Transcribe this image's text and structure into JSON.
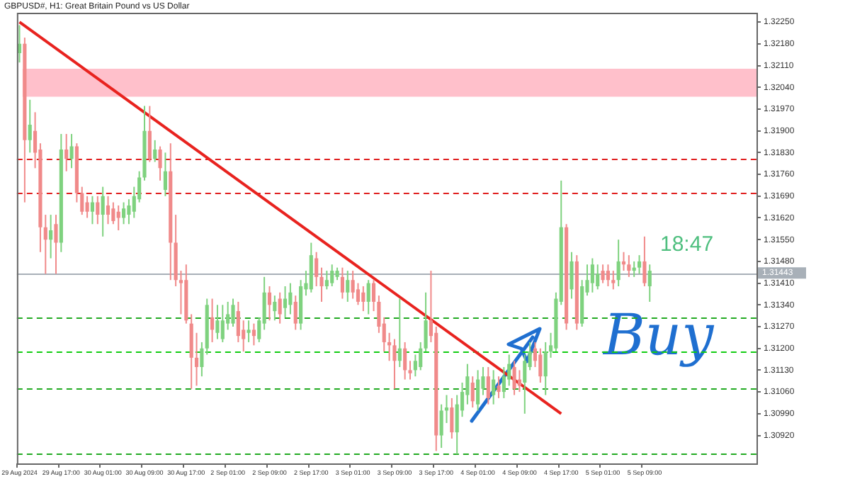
{
  "chart_data": {
    "type": "candlestick",
    "title": "GBPUSD#, H1: Great Britain Pound vs US Dollar",
    "categories": [
      "29 Aug 2024",
      null,
      null,
      null,
      null,
      null,
      null,
      null,
      "29 Aug 17:00",
      null,
      null,
      null,
      null,
      null,
      null,
      null,
      "30 Aug 01:00",
      null,
      null,
      null,
      null,
      null,
      null,
      null,
      "30 Aug 09:00",
      null,
      null,
      null,
      null,
      null,
      null,
      null,
      "30 Aug 17:00",
      null,
      null,
      null,
      null,
      null,
      null,
      null,
      "2 Sep 01:00",
      null,
      null,
      null,
      null,
      null,
      null,
      null,
      "2 Sep 09:00",
      null,
      null,
      null,
      null,
      null,
      null,
      null,
      "2 Sep 17:00",
      null,
      null,
      null,
      null,
      null,
      null,
      null,
      "3 Sep 01:00",
      null,
      null,
      null,
      null,
      null,
      null,
      null,
      "3 Sep 09:00",
      null,
      null,
      null,
      null,
      null,
      null,
      null,
      "3 Sep 17:00",
      null,
      null,
      null,
      null,
      null,
      null,
      null,
      "4 Sep 01:00",
      null,
      null,
      null,
      null,
      null,
      null,
      null,
      "4 Sep 09:00",
      null,
      null,
      null,
      null,
      null,
      null,
      null,
      "4 Sep 17:00",
      null,
      null,
      null,
      null,
      null,
      null,
      null,
      "5 Sep 01:00",
      null,
      null,
      null,
      null,
      null,
      null,
      null,
      "5 Sep 09:00",
      null,
      null,
      null,
      null,
      null,
      null,
      null,
      null,
      null,
      null,
      null,
      null,
      null,
      null,
      null,
      null,
      null,
      null,
      null,
      null,
      null
    ],
    "series": [
      {
        "ohlc": [
          [
            1.3215,
            1.3224,
            1.3212,
            1.3218
          ],
          [
            1.3218,
            1.322,
            1.3167,
            1.3187
          ],
          [
            1.3187,
            1.32,
            1.3183,
            1.3192
          ],
          [
            1.319,
            1.3196,
            1.3178,
            1.3183
          ],
          [
            1.3184,
            1.3186,
            1.3151,
            1.3159
          ],
          [
            1.3159,
            1.3163,
            1.3144,
            1.3155
          ],
          [
            1.3155,
            1.3163,
            1.3149,
            1.3158
          ],
          [
            1.316,
            1.3163,
            1.3144,
            1.3154
          ],
          [
            1.3154,
            1.3189,
            1.3151,
            1.3184
          ],
          [
            1.3184,
            1.3189,
            1.3177,
            1.3181
          ],
          [
            1.3181,
            1.3189,
            1.3178,
            1.3185
          ],
          [
            1.3185,
            1.3186,
            1.3167,
            1.317
          ],
          [
            1.317,
            1.3172,
            1.3163,
            1.3164
          ],
          [
            1.3167,
            1.3169,
            1.3162,
            1.3164
          ],
          [
            1.3164,
            1.3169,
            1.316,
            1.3167
          ],
          [
            1.3167,
            1.3169,
            1.316,
            1.3163
          ],
          [
            1.3163,
            1.3172,
            1.3156,
            1.3169
          ],
          [
            1.3166,
            1.3169,
            1.316,
            1.3163
          ],
          [
            1.3165,
            1.3167,
            1.316,
            1.3161
          ],
          [
            1.3164,
            1.3166,
            1.3158,
            1.3162
          ],
          [
            1.3162,
            1.3167,
            1.316,
            1.3165
          ],
          [
            1.3163,
            1.3168,
            1.316,
            1.3166
          ],
          [
            1.3164,
            1.3172,
            1.3162,
            1.3169
          ],
          [
            1.3168,
            1.3177,
            1.3167,
            1.3175
          ],
          [
            1.3175,
            1.3198,
            1.3174,
            1.319
          ],
          [
            1.319,
            1.3198,
            1.318,
            1.3181
          ],
          [
            1.3181,
            1.3187,
            1.318,
            1.3184
          ],
          [
            1.3184,
            1.3185,
            1.3174,
            1.3178
          ],
          [
            1.3171,
            1.3183,
            1.3169,
            1.3177
          ],
          [
            1.3177,
            1.3186,
            1.3142,
            1.3154
          ],
          [
            1.3154,
            1.3163,
            1.314,
            1.3142
          ],
          [
            1.3142,
            1.3145,
            1.3131,
            1.3141
          ],
          [
            1.3142,
            1.3147,
            1.3128,
            1.3129
          ],
          [
            1.3128,
            1.3131,
            1.3107,
            1.3117
          ],
          [
            1.3117,
            1.3125,
            1.3108,
            1.3114
          ],
          [
            1.3114,
            1.3122,
            1.3111,
            1.312
          ],
          [
            1.312,
            1.3136,
            1.3118,
            1.3134
          ],
          [
            1.313,
            1.3136,
            1.3122,
            1.3126
          ],
          [
            1.3125,
            1.3134,
            1.3123,
            1.3129
          ],
          [
            1.3123,
            1.3134,
            1.3122,
            1.3129
          ],
          [
            1.3128,
            1.3135,
            1.3126,
            1.3131
          ],
          [
            1.3128,
            1.3136,
            1.3127,
            1.3134
          ],
          [
            1.3132,
            1.3135,
            1.3122,
            1.3124
          ],
          [
            1.3126,
            1.3129,
            1.3119,
            1.3123
          ],
          [
            1.3125,
            1.3129,
            1.3122,
            1.3126
          ],
          [
            1.3126,
            1.3128,
            1.3121,
            1.3124
          ],
          [
            1.3123,
            1.313,
            1.3122,
            1.3129
          ],
          [
            1.3128,
            1.3143,
            1.3126,
            1.3138
          ],
          [
            1.3138,
            1.314,
            1.3129,
            1.3134
          ],
          [
            1.3132,
            1.3137,
            1.3129,
            1.3135
          ],
          [
            1.3136,
            1.3138,
            1.3128,
            1.3131
          ],
          [
            1.3133,
            1.314,
            1.313,
            1.3136
          ],
          [
            1.3134,
            1.3141,
            1.3131,
            1.3138
          ],
          [
            1.3135,
            1.3137,
            1.3126,
            1.3128
          ],
          [
            1.3128,
            1.3142,
            1.3126,
            1.314
          ],
          [
            1.3139,
            1.3145,
            1.3137,
            1.3141
          ],
          [
            1.3139,
            1.3154,
            1.3138,
            1.315
          ],
          [
            1.3149,
            1.3151,
            1.314,
            1.3143
          ],
          [
            1.3143,
            1.3146,
            1.3135,
            1.314
          ],
          [
            1.314,
            1.3145,
            1.3139,
            1.3142
          ],
          [
            1.3141,
            1.3147,
            1.314,
            1.3145
          ],
          [
            1.3143,
            1.3146,
            1.3142,
            1.3145
          ],
          [
            1.3143,
            1.3146,
            1.3136,
            1.3138
          ],
          [
            1.3138,
            1.3145,
            1.3135,
            1.3142
          ],
          [
            1.3142,
            1.3145,
            1.3136,
            1.3138
          ],
          [
            1.3139,
            1.3141,
            1.3134,
            1.3135
          ],
          [
            1.3138,
            1.314,
            1.3132,
            1.3135
          ],
          [
            1.3135,
            1.3142,
            1.3131,
            1.3141
          ],
          [
            1.3141,
            1.3142,
            1.3132,
            1.3135
          ],
          [
            1.3135,
            1.3137,
            1.3125,
            1.3127
          ],
          [
            1.3128,
            1.313,
            1.3119,
            1.3122
          ],
          [
            1.3122,
            1.3125,
            1.3116,
            1.3121
          ],
          [
            1.3121,
            1.3123,
            1.3107,
            1.3116
          ],
          [
            1.3116,
            1.3136,
            1.3114,
            1.312
          ],
          [
            1.312,
            1.3122,
            1.311,
            1.3113
          ],
          [
            1.3113,
            1.3116,
            1.311,
            1.3112
          ],
          [
            1.3113,
            1.3118,
            1.3111,
            1.3116
          ],
          [
            1.3114,
            1.3122,
            1.3113,
            1.312
          ],
          [
            1.312,
            1.3138,
            1.3119,
            1.3129
          ],
          [
            1.3129,
            1.3145,
            1.3122,
            1.3124
          ],
          [
            1.3125,
            1.3127,
            1.3087,
            1.3092
          ],
          [
            1.3092,
            1.3102,
            1.3088,
            1.31
          ],
          [
            1.31,
            1.3105,
            1.3096,
            1.3101
          ],
          [
            1.3101,
            1.3104,
            1.3091,
            1.3093
          ],
          [
            1.3093,
            1.3105,
            1.3086,
            1.3102
          ],
          [
            1.31,
            1.3109,
            1.3098,
            1.3106
          ],
          [
            1.3105,
            1.3115,
            1.3102,
            1.3111
          ],
          [
            1.3109,
            1.3111,
            1.3101,
            1.3103
          ],
          [
            1.3102,
            1.3113,
            1.31,
            1.311
          ],
          [
            1.3107,
            1.3114,
            1.3105,
            1.3111
          ],
          [
            1.3111,
            1.3114,
            1.3102,
            1.3104
          ],
          [
            1.3105,
            1.3113,
            1.3102,
            1.311
          ],
          [
            1.3108,
            1.3111,
            1.3104,
            1.3106
          ],
          [
            1.3106,
            1.3114,
            1.3104,
            1.3111
          ],
          [
            1.311,
            1.3118,
            1.3108,
            1.3115
          ],
          [
            1.3114,
            1.3116,
            1.3105,
            1.3107
          ],
          [
            1.311,
            1.3113,
            1.3106,
            1.3108
          ],
          [
            1.3109,
            1.3118,
            1.3099,
            1.3116
          ],
          [
            1.3114,
            1.3122,
            1.3113,
            1.3119
          ],
          [
            1.312,
            1.3122,
            1.3114,
            1.3116
          ],
          [
            1.3118,
            1.312,
            1.3109,
            1.3111
          ],
          [
            1.3111,
            1.3122,
            1.3105,
            1.3119
          ],
          [
            1.3119,
            1.3125,
            1.3117,
            1.3121
          ],
          [
            1.312,
            1.3138,
            1.3119,
            1.3136
          ],
          [
            1.3135,
            1.3174,
            1.3134,
            1.3159
          ],
          [
            1.3159,
            1.316,
            1.3126,
            1.3128
          ],
          [
            1.3139,
            1.3151,
            1.3136,
            1.3148
          ],
          [
            1.3148,
            1.315,
            1.3126,
            1.3128
          ],
          [
            1.3128,
            1.3142,
            1.3127,
            1.314
          ],
          [
            1.3138,
            1.3147,
            1.3137,
            1.3142
          ],
          [
            1.3141,
            1.3149,
            1.3138,
            1.3147
          ],
          [
            1.314,
            1.3147,
            1.3139,
            1.3144
          ],
          [
            1.3145,
            1.3147,
            1.3141,
            1.3142
          ],
          [
            1.3145,
            1.3147,
            1.314,
            1.3142
          ],
          [
            1.3142,
            1.3145,
            1.3139,
            1.3141
          ],
          [
            1.3142,
            1.3155,
            1.314,
            1.3148
          ],
          [
            1.3148,
            1.3151,
            1.3145,
            1.3147
          ],
          [
            1.3147,
            1.315,
            1.3143,
            1.3145
          ],
          [
            1.3145,
            1.3148,
            1.3143,
            1.3146
          ],
          [
            1.3146,
            1.315,
            1.3144,
            1.3148
          ],
          [
            1.3148,
            1.3156,
            1.314,
            1.3141
          ],
          [
            1.314,
            1.3147,
            1.3135,
            1.3145
          ],
          null,
          null,
          null,
          null,
          null,
          null,
          null,
          null,
          null,
          null,
          null,
          null,
          null,
          null,
          null,
          null,
          null,
          null,
          null,
          null
        ],
        "colors": [
          "#7fd27f",
          "#f08a8a",
          "#7fd27f",
          "#f08a8a",
          "#f08a8a",
          "#f08a8a",
          "#7fd27f",
          "#f08a8a",
          "#7fd27f",
          "#f08a8a",
          "#7fd27f",
          "#f08a8a",
          "#f08a8a",
          "#f08a8a",
          "#7fd27f",
          "#f08a8a",
          "#7fd27f",
          "#f08a8a",
          "#f08a8a",
          "#f08a8a",
          "#7fd27f",
          "#7fd27f",
          "#7fd27f",
          "#7fd27f",
          "#7fd27f",
          "#f08a8a",
          "#7fd27f",
          "#f08a8a",
          "#7fd27f",
          "#f08a8a",
          "#f08a8a",
          "#f08a8a",
          "#f08a8a",
          "#f08a8a",
          "#f08a8a",
          "#7fd27f",
          "#7fd27f",
          "#f08a8a",
          "#7fd27f",
          "#7fd27f",
          "#7fd27f",
          "#7fd27f",
          "#f08a8a",
          "#f08a8a",
          "#7fd27f",
          "#f08a8a",
          "#7fd27f",
          "#7fd27f",
          "#f08a8a",
          "#7fd27f",
          "#f08a8a",
          "#7fd27f",
          "#7fd27f",
          "#f08a8a",
          "#7fd27f",
          "#7fd27f",
          "#7fd27f",
          "#f08a8a",
          "#f08a8a",
          "#7fd27f",
          "#7fd27f",
          "#7fd27f",
          "#f08a8a",
          "#7fd27f",
          "#f08a8a",
          "#f08a8a",
          "#f08a8a",
          "#7fd27f",
          "#f08a8a",
          "#f08a8a",
          "#f08a8a",
          "#f08a8a",
          "#f08a8a",
          "#7fd27f",
          "#f08a8a",
          "#f08a8a",
          "#7fd27f",
          "#7fd27f",
          "#7fd27f",
          "#f08a8a",
          "#f08a8a",
          "#7fd27f",
          "#7fd27f",
          "#f08a8a",
          "#7fd27f",
          "#7fd27f",
          "#7fd27f",
          "#f08a8a",
          "#7fd27f",
          "#7fd27f",
          "#f08a8a",
          "#7fd27f",
          "#f08a8a",
          "#7fd27f",
          "#7fd27f",
          "#f08a8a",
          "#f08a8a",
          "#7fd27f",
          "#7fd27f",
          "#f08a8a",
          "#f08a8a",
          "#7fd27f",
          "#7fd27f",
          "#7fd27f",
          "#7fd27f",
          "#f08a8a",
          "#7fd27f",
          "#f08a8a",
          "#7fd27f",
          "#7fd27f",
          "#7fd27f",
          "#7fd27f",
          "#f08a8a",
          "#f08a8a",
          "#f08a8a",
          "#7fd27f",
          "#f08a8a",
          "#f08a8a",
          "#7fd27f",
          "#7fd27f",
          "#f08a8a",
          "#7fd27f",
          null,
          null,
          null,
          null,
          null,
          null,
          null,
          null,
          null,
          null,
          null,
          null,
          null,
          null,
          null,
          null,
          null,
          null,
          null,
          null
        ]
      },
      {
        "type": "line",
        "x": [
          "29 Aug 2024",
          "4 Sep 17:00"
        ],
        "values": [
          1.3225,
          1.3099
        ],
        "color": "#e8231f"
      }
    ],
    "ylim": [
      1.3083,
      1.3228
    ],
    "yticks": [
      {
        "value": 1.3092,
        "label": "1.30920"
      },
      {
        "value": 1.3099,
        "label": "1.30990"
      },
      {
        "value": 1.3106,
        "label": "1.31060"
      },
      {
        "value": 1.3113,
        "label": "1.31130"
      },
      {
        "value": 1.312,
        "label": "1.31200"
      },
      {
        "value": 1.3127,
        "label": "1.31270"
      },
      {
        "value": 1.3134,
        "label": "1.31340"
      },
      {
        "value": 1.3141,
        "label": "1.31410"
      },
      {
        "value": 1.3148,
        "label": "1.31480"
      },
      {
        "value": 1.3155,
        "label": "1.31550"
      },
      {
        "value": 1.3162,
        "label": "1.31620"
      },
      {
        "value": 1.3169,
        "label": "1.31690"
      },
      {
        "value": 1.3176,
        "label": "1.31760"
      },
      {
        "value": 1.3183,
        "label": "1.31830"
      },
      {
        "value": 1.319,
        "label": "1.31900"
      },
      {
        "value": 1.3197,
        "label": "1.31970"
      },
      {
        "value": 1.3204,
        "label": "1.32040"
      },
      {
        "value": 1.3211,
        "label": "1.32110"
      },
      {
        "value": 1.3218,
        "label": "1.32180"
      },
      {
        "value": 1.3225,
        "label": "1.32250"
      }
    ],
    "bands": [
      {
        "axis": "y",
        "from": 1.3201,
        "to": 1.321,
        "color": "#ffc0cb"
      }
    ],
    "ref_lines": [
      {
        "axis": "y",
        "value": 1.3181,
        "color": "#e02020",
        "line_style": "dashed"
      },
      {
        "axis": "y",
        "value": 1.317,
        "color": "#e02020",
        "line_style": "dashed"
      },
      {
        "axis": "y",
        "value": 1.31443,
        "label": "1.31443",
        "color": "#a8b0b8",
        "line_style": "solid"
      },
      {
        "axis": "y",
        "value": 1.313,
        "color": "#22aa22",
        "line_style": "dashed"
      },
      {
        "axis": "y",
        "value": 1.3119,
        "color": "#11cc11",
        "line_style": "dashed"
      },
      {
        "axis": "y",
        "value": 1.3107,
        "color": "#22aa22",
        "line_style": "dashed"
      },
      {
        "axis": "y",
        "value": 1.3086,
        "color": "#22aa22",
        "line_style": "dashed"
      }
    ],
    "annotations": [
      "18:47",
      "Buy"
    ]
  }
}
